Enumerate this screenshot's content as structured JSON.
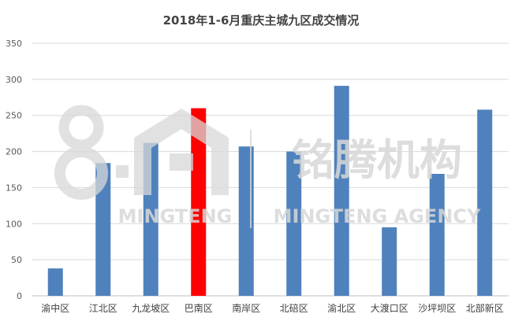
{
  "chart_data": {
    "type": "bar",
    "title": "2018年1-6月重庆主城九区成交情况",
    "xlabel": "",
    "ylabel": "",
    "ylim": [
      0,
      350
    ],
    "yticks": [
      0,
      50,
      100,
      150,
      200,
      250,
      300,
      350
    ],
    "grid": true,
    "legend": "none",
    "categories": [
      "渝中区",
      "江北区",
      "九龙坡区",
      "巴南区",
      "南岸区",
      "北碚区",
      "渝北区",
      "大渡口区",
      "沙坪坝区",
      "北部新区"
    ],
    "values": [
      38,
      184,
      212,
      260,
      207,
      200,
      291,
      95,
      169,
      258
    ],
    "bar_colors": [
      "#4f81bd",
      "#4f81bd",
      "#4f81bd",
      "#ff0000",
      "#4f81bd",
      "#4f81bd",
      "#4f81bd",
      "#4f81bd",
      "#4f81bd",
      "#4f81bd"
    ]
  },
  "watermark": {
    "cn_text": "铭腾机构",
    "en_text": "MINGTENG AGENCY",
    "logo_sub": "MINGTENG",
    "color": "#d8d8d8"
  }
}
